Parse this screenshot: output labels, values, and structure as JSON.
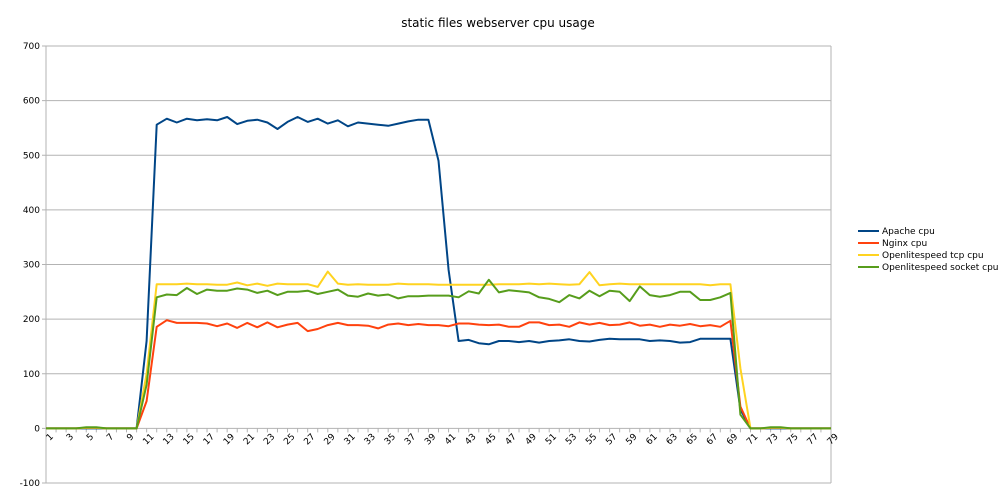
{
  "chart_data": {
    "type": "line",
    "title": "static files webserver cpu usage",
    "xlabel": "",
    "ylabel": "",
    "ylim": [
      -100,
      700
    ],
    "yticks": [
      -100,
      0,
      100,
      200,
      300,
      400,
      500,
      600,
      700
    ],
    "x": [
      1,
      2,
      3,
      4,
      5,
      6,
      7,
      8,
      9,
      10,
      11,
      12,
      13,
      14,
      15,
      16,
      17,
      18,
      19,
      20,
      21,
      22,
      23,
      24,
      25,
      26,
      27,
      28,
      29,
      30,
      31,
      32,
      33,
      34,
      35,
      36,
      37,
      38,
      39,
      40,
      41,
      42,
      43,
      44,
      45,
      46,
      47,
      48,
      49,
      50,
      51,
      52,
      53,
      54,
      55,
      56,
      57,
      58,
      59,
      60,
      61,
      62,
      63,
      64,
      65,
      66,
      67,
      68,
      69,
      70,
      71,
      72,
      73,
      74,
      75,
      76,
      77,
      78,
      79
    ],
    "xtick_labels": [
      1,
      3,
      5,
      7,
      9,
      11,
      13,
      15,
      17,
      19,
      21,
      23,
      25,
      27,
      29,
      31,
      33,
      35,
      37,
      39,
      41,
      43,
      45,
      47,
      49,
      51,
      53,
      55,
      57,
      59,
      61,
      63,
      65,
      67,
      69,
      71,
      73,
      75,
      77,
      79
    ],
    "grid": "horizontal",
    "legend_position": "right",
    "series": [
      {
        "name": "Apache cpu",
        "color": "#004586",
        "values": [
          0,
          0,
          0,
          0,
          0,
          0,
          0,
          0,
          0,
          0,
          160,
          556,
          567,
          560,
          567,
          564,
          566,
          564,
          570,
          557,
          563,
          565,
          560,
          548,
          561,
          570,
          561,
          567,
          558,
          564,
          553,
          560,
          558,
          556,
          554,
          558,
          562,
          565,
          565,
          490,
          290,
          160,
          162,
          156,
          154,
          160,
          160,
          158,
          160,
          157,
          160,
          161,
          163,
          160,
          159,
          162,
          164,
          163,
          163,
          163,
          160,
          161,
          160,
          157,
          158,
          164,
          164,
          164,
          164,
          35,
          0,
          0,
          0,
          0,
          0,
          0,
          0,
          0,
          0
        ]
      },
      {
        "name": "Nginx cpu",
        "color": "#ff420e",
        "values": [
          0,
          0,
          0,
          0,
          1,
          1,
          0,
          0,
          0,
          0,
          50,
          186,
          198,
          193,
          193,
          193,
          192,
          187,
          192,
          184,
          193,
          185,
          194,
          185,
          190,
          193,
          178,
          182,
          189,
          193,
          189,
          189,
          188,
          183,
          190,
          192,
          189,
          191,
          189,
          189,
          187,
          192,
          192,
          190,
          189,
          190,
          186,
          186,
          194,
          194,
          189,
          190,
          186,
          194,
          190,
          193,
          189,
          190,
          194,
          188,
          190,
          186,
          190,
          188,
          191,
          187,
          189,
          186,
          197,
          40,
          0,
          0,
          1,
          1,
          0,
          0,
          0,
          0,
          0
        ]
      },
      {
        "name": "Openlitespeed tcp cpu",
        "color": "#ffd320",
        "values": [
          0,
          0,
          0,
          0,
          1,
          1,
          0,
          0,
          0,
          0,
          100,
          264,
          264,
          264,
          265,
          264,
          264,
          263,
          263,
          267,
          262,
          265,
          261,
          265,
          264,
          264,
          264,
          259,
          287,
          265,
          263,
          264,
          263,
          263,
          263,
          265,
          264,
          264,
          264,
          263,
          263,
          263,
          263,
          263,
          263,
          264,
          264,
          264,
          265,
          264,
          265,
          264,
          263,
          264,
          286,
          262,
          264,
          265,
          264,
          264,
          264,
          264,
          264,
          264,
          264,
          264,
          262,
          264,
          264,
          110,
          0,
          0,
          1,
          1,
          0,
          0,
          0,
          0,
          0
        ]
      },
      {
        "name": "Openlitespeed socket cpu",
        "color": "#579d1c",
        "values": [
          0,
          0,
          0,
          0,
          2,
          2,
          0,
          0,
          0,
          0,
          80,
          240,
          245,
          244,
          257,
          246,
          254,
          252,
          252,
          256,
          254,
          248,
          252,
          244,
          250,
          250,
          252,
          246,
          250,
          254,
          243,
          241,
          247,
          243,
          245,
          238,
          242,
          242,
          243,
          243,
          243,
          240,
          251,
          247,
          272,
          249,
          253,
          251,
          249,
          240,
          237,
          231,
          244,
          238,
          252,
          242,
          252,
          250,
          233,
          260,
          244,
          241,
          244,
          250,
          250,
          235,
          235,
          240,
          248,
          25,
          0,
          0,
          2,
          2,
          0,
          0,
          0,
          0,
          0
        ]
      }
    ]
  }
}
